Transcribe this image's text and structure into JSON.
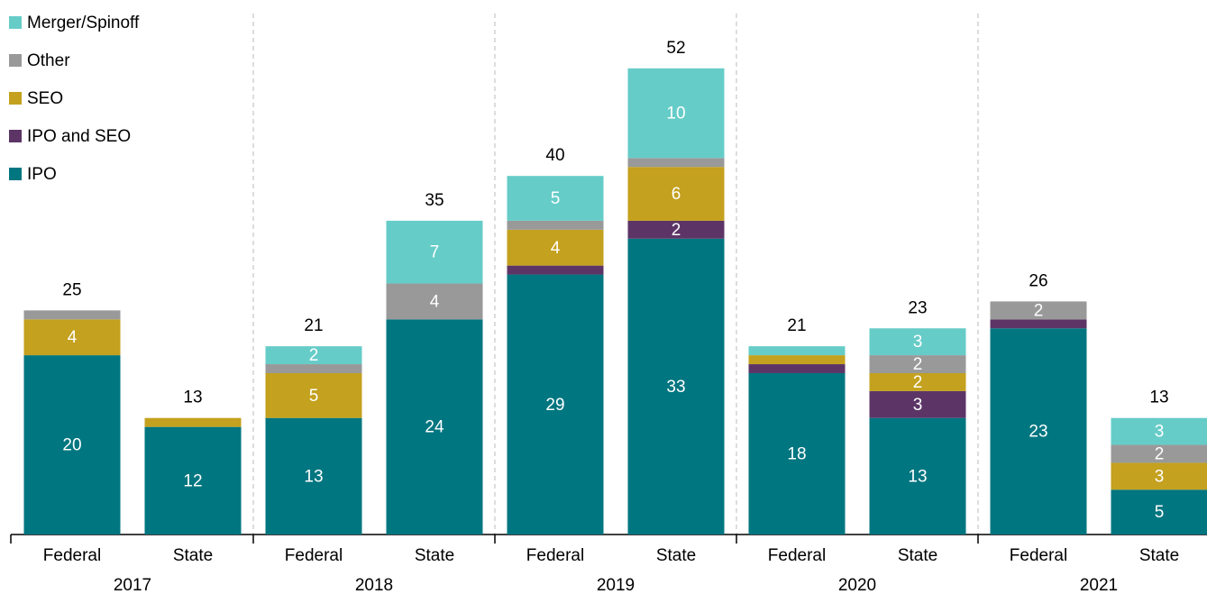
{
  "chart_data": {
    "type": "stacked-bar",
    "categories": [
      "Federal",
      "State",
      "Federal",
      "State",
      "Federal",
      "State",
      "Federal",
      "State",
      "Federal",
      "State"
    ],
    "groups": [
      "2017",
      "2018",
      "2019",
      "2020",
      "2021"
    ],
    "series": [
      {
        "name": "IPO",
        "color": "#007680",
        "values": [
          20,
          12,
          13,
          24,
          29,
          33,
          18,
          13,
          23,
          5
        ],
        "value_labels": [
          20,
          12,
          13,
          24,
          29,
          33,
          18,
          13,
          23,
          5
        ]
      },
      {
        "name": "IPO and SEO",
        "color": "#5c3566",
        "values": [
          0,
          0,
          0,
          0,
          1,
          2,
          1,
          3,
          1,
          0
        ],
        "value_labels": [
          null,
          null,
          null,
          null,
          null,
          2,
          null,
          3,
          null,
          null
        ]
      },
      {
        "name": "SEO",
        "color": "#c4a11e",
        "values": [
          4,
          1,
          5,
          0,
          4,
          6,
          1,
          2,
          0,
          3
        ],
        "value_labels": [
          4,
          null,
          5,
          null,
          4,
          6,
          null,
          2,
          null,
          3
        ]
      },
      {
        "name": "Other",
        "color": "#999999",
        "values": [
          1,
          0,
          1,
          4,
          1,
          1,
          0,
          2,
          2,
          2
        ],
        "value_labels": [
          null,
          null,
          null,
          4,
          null,
          null,
          null,
          2,
          2,
          2
        ]
      },
      {
        "name": "Merger/Spinoff",
        "color": "#66ccc8",
        "values": [
          0,
          0,
          2,
          7,
          5,
          10,
          1,
          3,
          0,
          3
        ],
        "value_labels": [
          null,
          null,
          2,
          7,
          5,
          10,
          null,
          3,
          null,
          3
        ]
      }
    ],
    "totals": [
      25,
      13,
      21,
      35,
      40,
      52,
      21,
      23,
      26,
      13
    ],
    "ylim": [
      0,
      55
    ],
    "legend": "top-left"
  }
}
